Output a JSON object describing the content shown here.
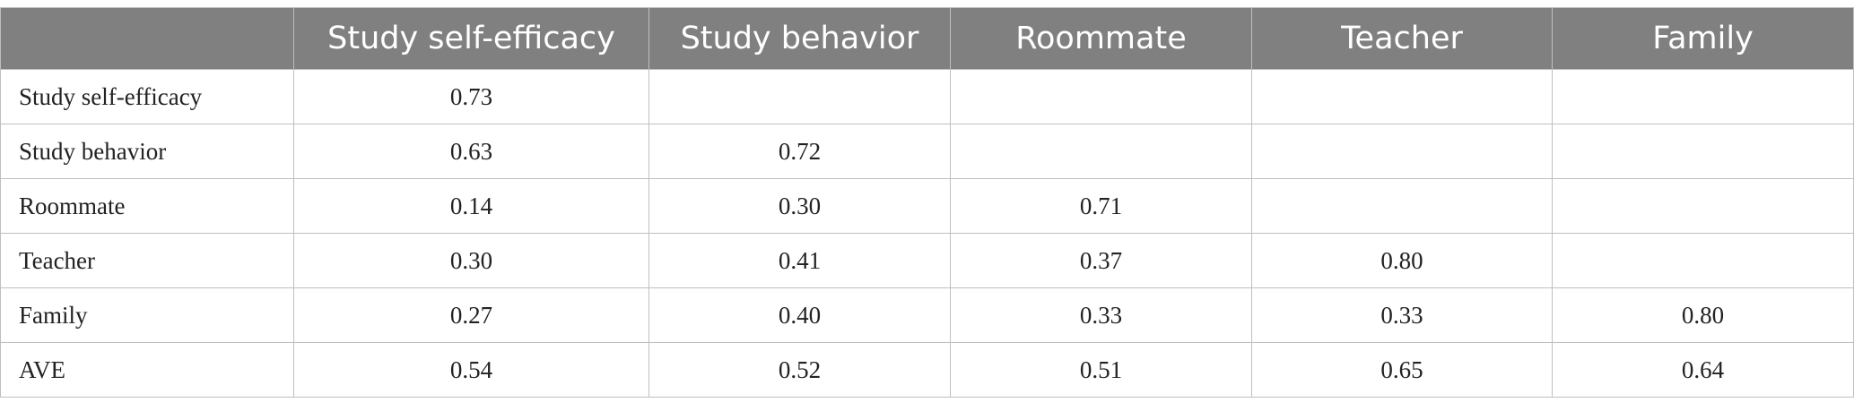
{
  "table": {
    "headers": [
      "",
      "Study self-efficacy",
      "Study behavior",
      "Roommate",
      "Teacher",
      "Family"
    ],
    "rows": [
      {
        "label": "Study self-efficacy",
        "values": [
          "0.73",
          "",
          "",
          "",
          ""
        ]
      },
      {
        "label": "Study behavior",
        "values": [
          "0.63",
          "0.72",
          "",
          "",
          ""
        ]
      },
      {
        "label": "Roommate",
        "values": [
          "0.14",
          "0.30",
          "0.71",
          "",
          ""
        ]
      },
      {
        "label": "Teacher",
        "values": [
          "0.30",
          "0.41",
          "0.37",
          "0.80",
          ""
        ]
      },
      {
        "label": "Family",
        "values": [
          "0.27",
          "0.40",
          "0.33",
          "0.33",
          "0.80"
        ]
      },
      {
        "label": "AVE",
        "values": [
          "0.54",
          "0.52",
          "0.51",
          "0.65",
          "0.64"
        ]
      }
    ]
  }
}
